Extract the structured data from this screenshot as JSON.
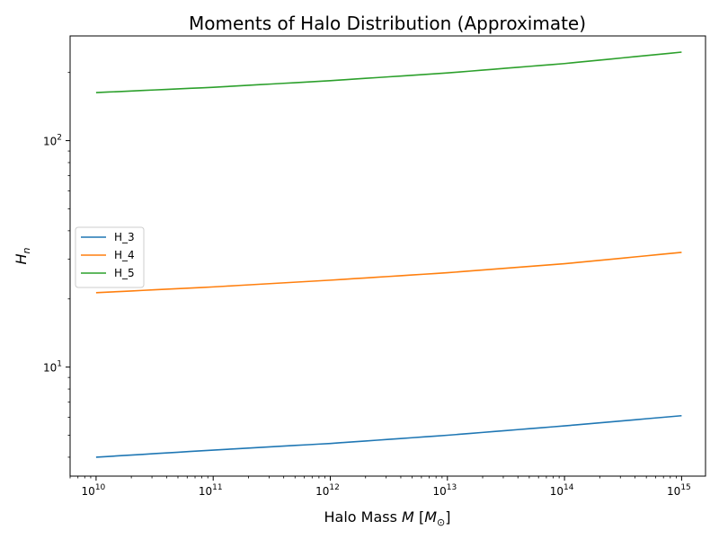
{
  "chart_data": {
    "type": "line",
    "title": "Moments of Halo Distribution (Approximate)",
    "xlabel": "Halo Mass M [M_⊙]",
    "ylabel": "H_n",
    "x_scale": "log",
    "y_scale": "log",
    "xlim": [
      6000000000.0,
      1600000000000000.0
    ],
    "ylim": [
      3.3,
      290
    ],
    "x_ticks": [
      "10^10",
      "10^11",
      "10^12",
      "10^13",
      "10^14",
      "10^15"
    ],
    "y_ticks": [
      "10^1",
      "10^2"
    ],
    "grid": false,
    "legend_position": "center-left",
    "x": [
      10000000000.0,
      100000000000.0,
      1000000000000.0,
      10000000000000.0,
      100000000000000.0,
      1000000000000000.0
    ],
    "series": [
      {
        "name": "H_3",
        "color": "#1f77b4",
        "values": [
          4.0,
          4.3,
          4.6,
          5.0,
          5.5,
          6.1
        ]
      },
      {
        "name": "H_4",
        "color": "#ff7f0e",
        "values": [
          21.3,
          22.6,
          24.2,
          26.1,
          28.6,
          32.1
        ]
      },
      {
        "name": "H_5",
        "color": "#2ca02c",
        "values": [
          163,
          172,
          184,
          199,
          219,
          246
        ]
      }
    ]
  }
}
